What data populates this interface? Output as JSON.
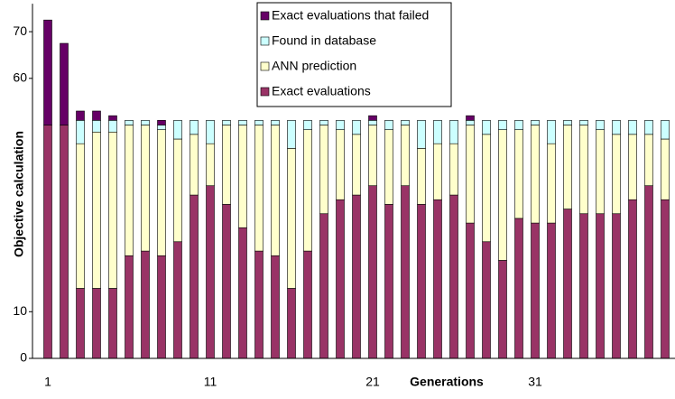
{
  "chart_data": {
    "type": "bar",
    "stacked": true,
    "y_label": "Objective calculation",
    "x_label": "Generations",
    "categories": [
      "1",
      null,
      null,
      null,
      null,
      null,
      null,
      null,
      null,
      null,
      "11",
      null,
      null,
      null,
      null,
      null,
      null,
      null,
      null,
      null,
      "21",
      null,
      null,
      null,
      null,
      null,
      null,
      null,
      null,
      null,
      "31",
      null,
      null,
      null,
      null,
      null,
      null,
      null,
      null
    ],
    "series": [
      {
        "name": "Exact evaluations",
        "color": "#993366",
        "values": [
          50,
          50,
          15,
          15,
          15,
          22,
          23,
          22,
          25,
          35,
          37,
          33,
          28,
          23,
          22,
          15,
          23,
          31,
          34,
          35,
          37,
          33,
          37,
          33,
          34,
          35,
          29,
          25,
          21,
          30,
          29,
          29,
          32,
          31,
          31,
          31,
          34,
          37,
          34
        ]
      },
      {
        "name": "ANN prediction",
        "color": "#ffffcc",
        "values": [
          0,
          0,
          31,
          33.5,
          33.5,
          28,
          27,
          27,
          22,
          13,
          9,
          17,
          22,
          27,
          28,
          30,
          26,
          19,
          15,
          13,
          13,
          16,
          13,
          12,
          12,
          11,
          21,
          23,
          28,
          19,
          21,
          17,
          18,
          19,
          18,
          17,
          14,
          11,
          13
        ]
      },
      {
        "name": "Found in database",
        "color": "#ccffff",
        "values": [
          0,
          0,
          5,
          2.5,
          2.5,
          1,
          1,
          1,
          4,
          3,
          5,
          1,
          1,
          1,
          1,
          6,
          2,
          1,
          2,
          3,
          1,
          2,
          1,
          6,
          5,
          5,
          1,
          3,
          2,
          2,
          1,
          5,
          1,
          1,
          2,
          3,
          3,
          3,
          4
        ]
      },
      {
        "name": "Exact evaluations that failed",
        "color": "#660066",
        "values": [
          22.5,
          17.5,
          2,
          2,
          1,
          0,
          0,
          1,
          0,
          0,
          0,
          0,
          0,
          0,
          0,
          0,
          0,
          0,
          0,
          0,
          1,
          0,
          0,
          0,
          0,
          0,
          1,
          0,
          0,
          0,
          0,
          0,
          0,
          0,
          0,
          0,
          0,
          0,
          0
        ]
      }
    ],
    "ylim": [
      0,
      76
    ],
    "yticks": [
      0,
      10,
      60,
      70
    ]
  }
}
